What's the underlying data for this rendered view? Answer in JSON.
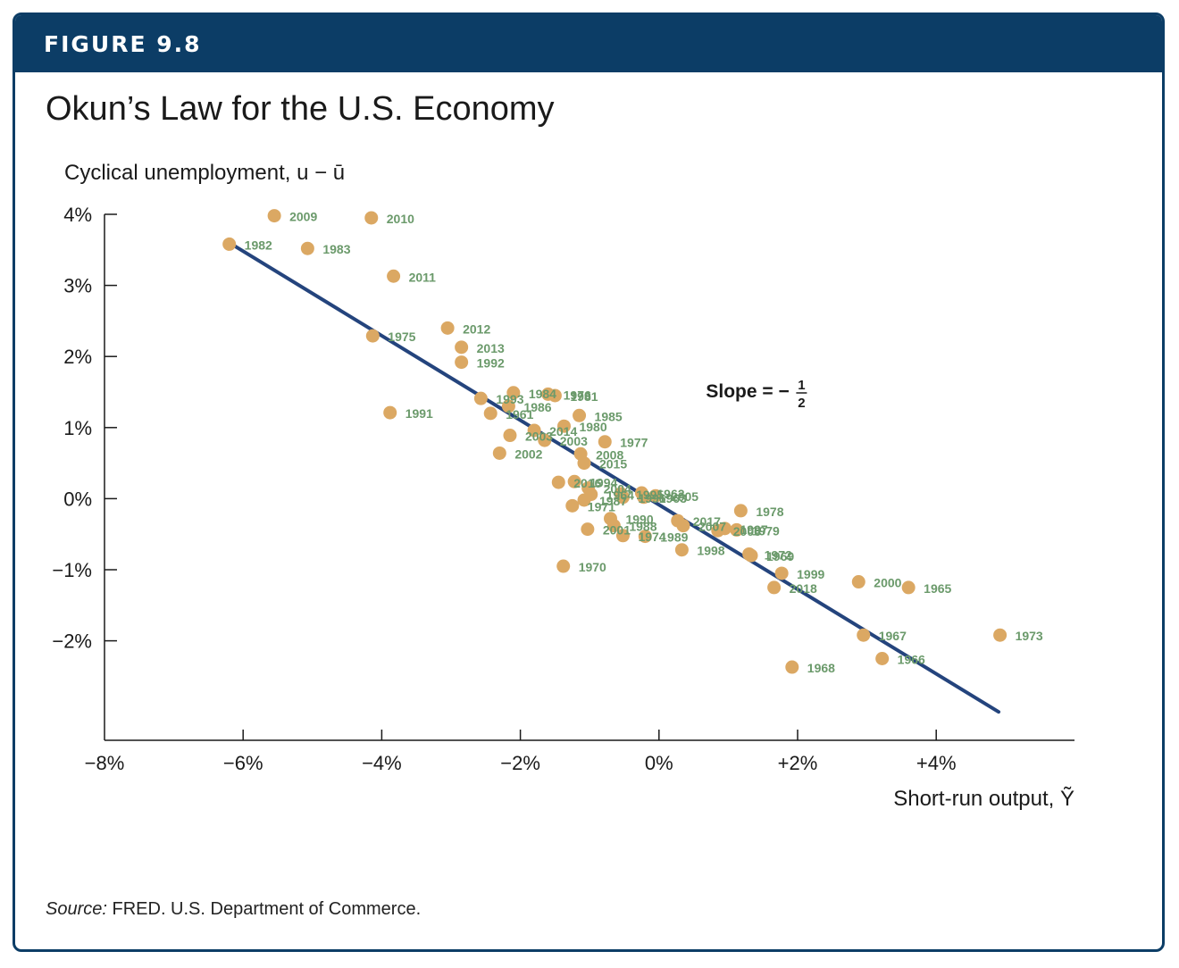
{
  "figure": {
    "label": "FIGURE 9.8",
    "title": "Okun’s Law for the U.S. Economy"
  },
  "source": {
    "prefix": "Source:",
    "text": " FRED. U.S. Department of Commerce."
  },
  "colors": {
    "header": "#0c3d66",
    "point": "#dba863",
    "label": "#6b9a6b",
    "line": "#24447d"
  },
  "chart_data": {
    "type": "scatter",
    "ylabel": "Cyclical unemployment, u − ū",
    "xlabel": "Short-run output, Ỹ",
    "xlim": [
      -8,
      6
    ],
    "ylim": [
      -3,
      4
    ],
    "x_ticks": [
      {
        "value": -8,
        "label": "−8%"
      },
      {
        "value": -6,
        "label": "−6%"
      },
      {
        "value": -4,
        "label": "−4%"
      },
      {
        "value": -2,
        "label": "−2%"
      },
      {
        "value": 0,
        "label": "0%"
      },
      {
        "value": 2,
        "label": "+2%"
      },
      {
        "value": 4,
        "label": "+4%"
      }
    ],
    "y_ticks": [
      {
        "value": 4,
        "label": "4%"
      },
      {
        "value": 3,
        "label": "3%"
      },
      {
        "value": 2,
        "label": "2%"
      },
      {
        "value": 1,
        "label": "1%"
      },
      {
        "value": 0,
        "label": "0%"
      },
      {
        "value": -1,
        "label": "−1%"
      },
      {
        "value": -2,
        "label": "−2%"
      }
    ],
    "annotation": {
      "text": "Slope = −",
      "fraction_num": "1",
      "fraction_den": "2",
      "x": 1.0,
      "y": 1.5
    },
    "fit_line": {
      "slope": -0.5,
      "from": [
        -6.2,
        3.6
      ],
      "to": [
        4.9,
        -3.0
      ]
    },
    "points": [
      {
        "label": "2009",
        "x": -5.55,
        "y": 3.98
      },
      {
        "label": "2010",
        "x": -4.15,
        "y": 3.95
      },
      {
        "label": "1982",
        "x": -6.2,
        "y": 3.58
      },
      {
        "label": "1983",
        "x": -5.07,
        "y": 3.52
      },
      {
        "label": "2011",
        "x": -3.83,
        "y": 3.13
      },
      {
        "label": "2012",
        "x": -3.05,
        "y": 2.4
      },
      {
        "label": "1975",
        "x": -4.13,
        "y": 2.29
      },
      {
        "label": "2013",
        "x": -2.85,
        "y": 2.13
      },
      {
        "label": "1992",
        "x": -2.85,
        "y": 1.92
      },
      {
        "label": "1984",
        "x": -2.1,
        "y": 1.49
      },
      {
        "label": "1976",
        "x": -1.6,
        "y": 1.47
      },
      {
        "label": "1981",
        "x": -1.5,
        "y": 1.45
      },
      {
        "label": "1993",
        "x": -2.57,
        "y": 1.41
      },
      {
        "label": "1986",
        "x": -2.17,
        "y": 1.3
      },
      {
        "label": "1991",
        "x": -3.88,
        "y": 1.21
      },
      {
        "label": "1961",
        "x": -2.43,
        "y": 1.2
      },
      {
        "label": "1985",
        "x": -1.15,
        "y": 1.17
      },
      {
        "label": "1980",
        "x": -1.37,
        "y": 1.02
      },
      {
        "label": "2014",
        "x": -1.8,
        "y": 0.96
      },
      {
        "label": "2003",
        "x": -2.15,
        "y": 0.89
      },
      {
        "label": "2003",
        "x": -1.65,
        "y": 0.82
      },
      {
        "label": "1977",
        "x": -0.78,
        "y": 0.8
      },
      {
        "label": "2002",
        "x": -2.3,
        "y": 0.64
      },
      {
        "label": "2008",
        "x": -1.13,
        "y": 0.63
      },
      {
        "label": "2015",
        "x": -1.08,
        "y": 0.5
      },
      {
        "label": "1994",
        "x": -1.22,
        "y": 0.24
      },
      {
        "label": "2016",
        "x": -1.45,
        "y": 0.23
      },
      {
        "label": "2004",
        "x": -1.02,
        "y": 0.15
      },
      {
        "label": "1995",
        "x": -0.55,
        "y": 0.07
      },
      {
        "label": "1962",
        "x": -0.25,
        "y": 0.08
      },
      {
        "label": "2005",
        "x": -0.05,
        "y": 0.04
      },
      {
        "label": "1963",
        "x": -0.22,
        "y": 0.02
      },
      {
        "label": "1964",
        "x": -0.98,
        "y": 0.06
      },
      {
        "label": "1996",
        "x": -0.52,
        "y": 0.02
      },
      {
        "label": "1987",
        "x": -1.08,
        "y": -0.02
      },
      {
        "label": "1971",
        "x": -1.25,
        "y": -0.1
      },
      {
        "label": "1990",
        "x": -0.7,
        "y": -0.28
      },
      {
        "label": "2017",
        "x": 0.27,
        "y": -0.31
      },
      {
        "label": "2007",
        "x": 0.35,
        "y": -0.38
      },
      {
        "label": "1988",
        "x": -0.65,
        "y": -0.38
      },
      {
        "label": "1978",
        "x": 1.18,
        "y": -0.17
      },
      {
        "label": "2006",
        "x": 0.85,
        "y": -0.45
      },
      {
        "label": "1979",
        "x": 1.12,
        "y": -0.44
      },
      {
        "label": "2001",
        "x": -1.03,
        "y": -0.43
      },
      {
        "label": "1974",
        "x": -0.52,
        "y": -0.52
      },
      {
        "label": "1989",
        "x": -0.2,
        "y": -0.53
      },
      {
        "label": "1997",
        "x": 0.95,
        "y": -0.42
      },
      {
        "label": "1972",
        "x": 1.3,
        "y": -0.78
      },
      {
        "label": "1998",
        "x": 0.33,
        "y": -0.72
      },
      {
        "label": "1970",
        "x": -1.38,
        "y": -0.95
      },
      {
        "label": "1999",
        "x": 1.77,
        "y": -1.05
      },
      {
        "label": "2018",
        "x": 1.66,
        "y": -1.25
      },
      {
        "label": "2000",
        "x": 2.88,
        "y": -1.17
      },
      {
        "label": "1965",
        "x": 3.6,
        "y": -1.25
      },
      {
        "label": "1973",
        "x": 4.92,
        "y": -1.92
      },
      {
        "label": "1967",
        "x": 2.95,
        "y": -1.92
      },
      {
        "label": "1966",
        "x": 3.22,
        "y": -2.25
      },
      {
        "label": "1968",
        "x": 1.92,
        "y": -2.37
      },
      {
        "label": "1969",
        "x": 1.33,
        "y": -0.8
      }
    ]
  }
}
